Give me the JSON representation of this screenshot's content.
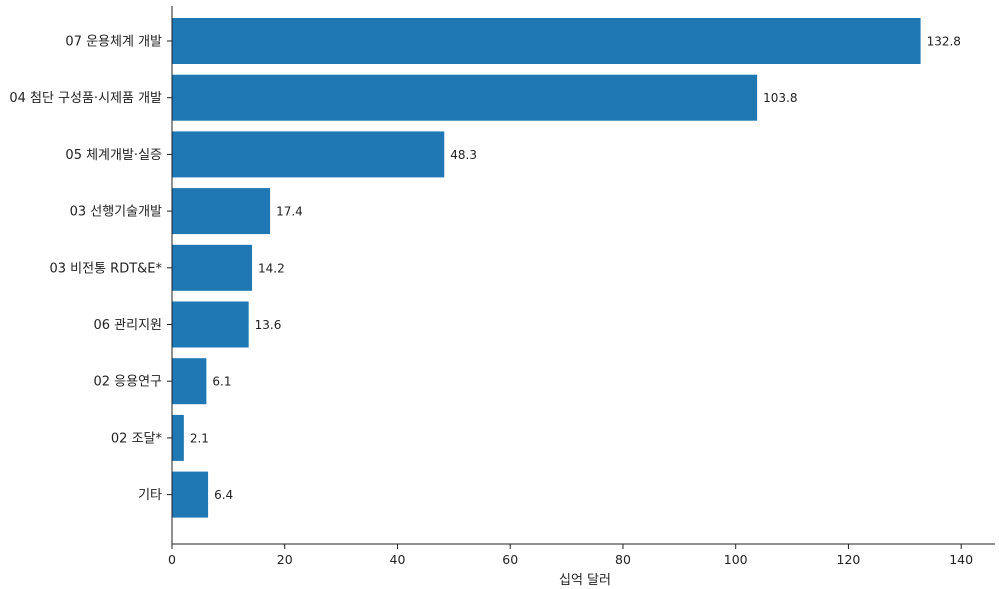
{
  "chart_data": {
    "type": "bar",
    "orientation": "horizontal",
    "categories": [
      "07 운용체계 개발",
      "04 첨단 구성품·시제품 개발",
      "05 체계개발·실증",
      "03 선행기술개발",
      "03 비전통 RDT&E*",
      "06 관리지원",
      "02 응용연구",
      "02 조달*",
      "기타"
    ],
    "values": [
      132.8,
      103.8,
      48.3,
      17.4,
      14.2,
      13.6,
      6.1,
      2.1,
      6.4
    ],
    "value_labels": [
      "132.8",
      "103.8",
      "48.3",
      "17.4",
      "14.2",
      "13.6",
      "6.1",
      "2.1",
      "6.4"
    ],
    "xlabel": "십억 달러",
    "ylabel": "",
    "xlim": [
      0,
      146
    ],
    "xticks": [
      0,
      20,
      40,
      60,
      80,
      100,
      120,
      140
    ],
    "xtick_labels": [
      "0",
      "20",
      "40",
      "60",
      "80",
      "100",
      "120",
      "140"
    ],
    "grid": false,
    "bar_color": "#1f77b4"
  }
}
